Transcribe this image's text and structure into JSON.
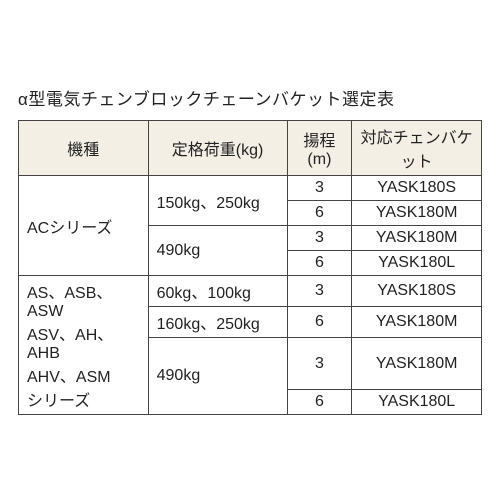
{
  "title": "α型電気チェンブロックチェーンバケット選定表",
  "colors": {
    "header_bg": "#f3efe4",
    "border": "#444444",
    "text": "#222222",
    "page_bg": "#ffffff"
  },
  "table": {
    "headers": {
      "model": "機種",
      "load": "定格荷重(kg)",
      "lift": "揚程(m)",
      "bucket": "対応チェンバケット"
    },
    "rows": [
      {
        "model": "ACシリーズ",
        "load": "150kg、250kg",
        "lift": "3",
        "bucket": "YASK180S"
      },
      {
        "model": "",
        "load": "",
        "lift": "6",
        "bucket": "YASK180M"
      },
      {
        "model": "",
        "load": "490kg",
        "lift": "3",
        "bucket": "YASK180M"
      },
      {
        "model": "",
        "load": "",
        "lift": "6",
        "bucket": "YASK180L"
      },
      {
        "model": "AS、ASB、ASW",
        "load": "60kg、100kg",
        "lift": "3",
        "bucket": "YASK180S"
      },
      {
        "model": "ASV、AH、AHB",
        "load": "160kg、250kg",
        "lift": "6",
        "bucket": "YASK180M"
      },
      {
        "model": "AHV、ASM",
        "load": "490kg",
        "lift": "3",
        "bucket": "YASK180M"
      },
      {
        "model": "シリーズ",
        "load": "",
        "lift": "6",
        "bucket": "YASK180L"
      }
    ],
    "layout": {
      "model_spans": [
        4,
        4
      ],
      "load_spans_group1": [
        2,
        2
      ],
      "load_spans_group2": [
        1,
        1,
        2
      ]
    }
  }
}
